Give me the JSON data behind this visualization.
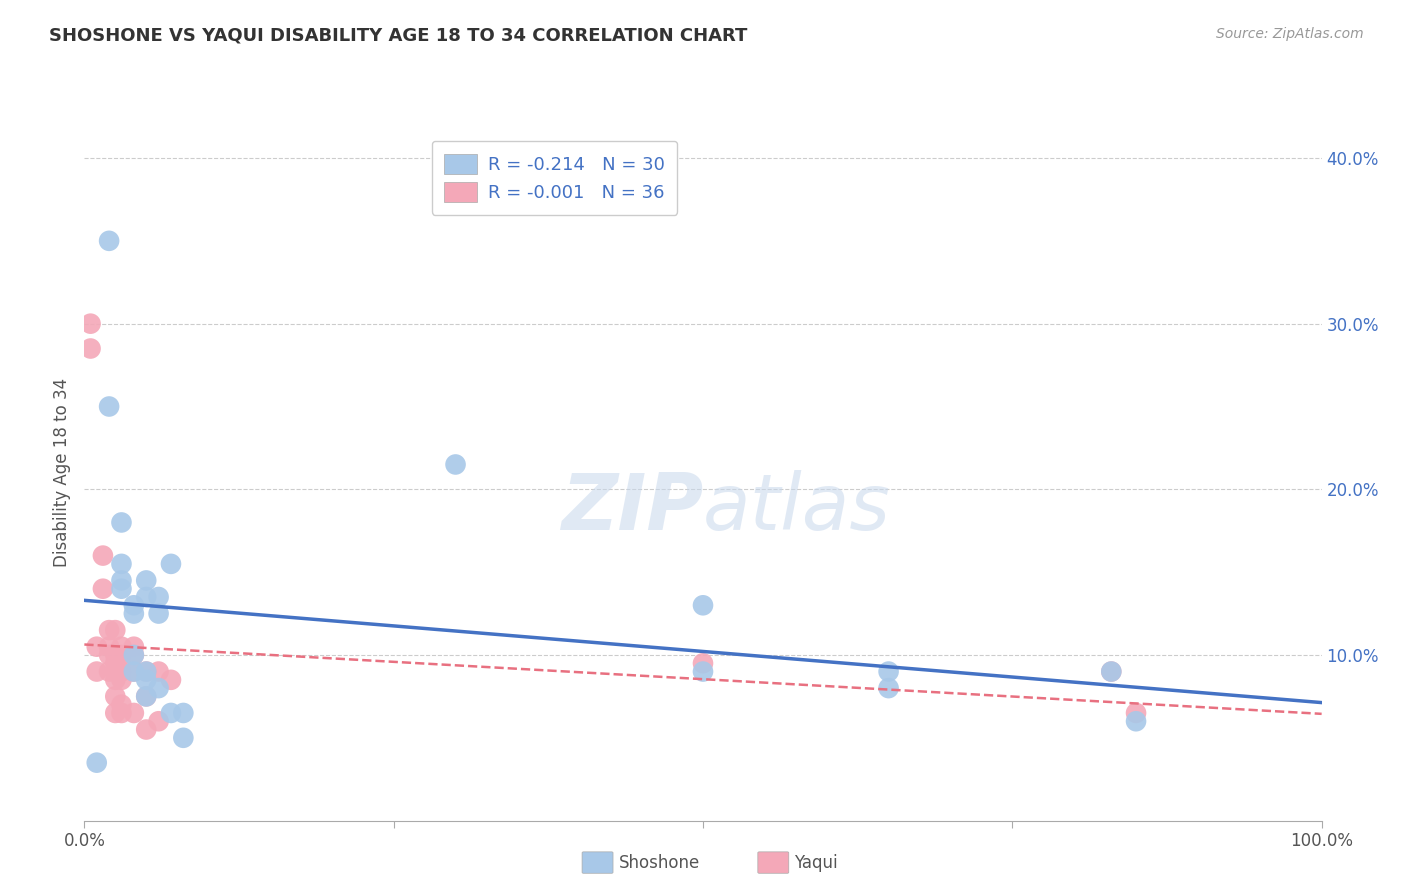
{
  "title": "SHOSHONE VS YAQUI DISABILITY AGE 18 TO 34 CORRELATION CHART",
  "source_text": "Source: ZipAtlas.com",
  "ylabel": "Disability Age 18 to 34",
  "xlim": [
    0,
    1.0
  ],
  "ylim": [
    0,
    0.42
  ],
  "xticks": [
    0.0,
    0.25,
    0.5,
    0.75,
    1.0
  ],
  "xtick_labels": [
    "0.0%",
    "",
    "",
    "",
    "100.0%"
  ],
  "yticks": [
    0.0,
    0.1,
    0.2,
    0.3,
    0.4
  ],
  "ytick_labels_right": [
    "",
    "10.0%",
    "20.0%",
    "30.0%",
    "40.0%"
  ],
  "shoshone_R": -0.214,
  "shoshone_N": 30,
  "yaqui_R": -0.001,
  "yaqui_N": 36,
  "legend_label_shoshone": "Shoshone",
  "legend_label_yaqui": "Yaqui",
  "shoshone_color": "#A8C8E8",
  "yaqui_color": "#F4A8B8",
  "shoshone_line_color": "#4472C4",
  "yaqui_line_color": "#E87080",
  "shoshone_x": [
    0.01,
    0.02,
    0.02,
    0.03,
    0.03,
    0.03,
    0.03,
    0.04,
    0.04,
    0.04,
    0.04,
    0.05,
    0.05,
    0.05,
    0.05,
    0.05,
    0.06,
    0.06,
    0.06,
    0.07,
    0.07,
    0.08,
    0.08,
    0.3,
    0.5,
    0.5,
    0.65,
    0.65,
    0.83,
    0.85
  ],
  "shoshone_y": [
    0.035,
    0.35,
    0.25,
    0.18,
    0.155,
    0.145,
    0.14,
    0.13,
    0.125,
    0.1,
    0.09,
    0.145,
    0.135,
    0.09,
    0.085,
    0.075,
    0.135,
    0.125,
    0.08,
    0.155,
    0.065,
    0.065,
    0.05,
    0.215,
    0.13,
    0.09,
    0.09,
    0.08,
    0.09,
    0.06
  ],
  "yaqui_x": [
    0.005,
    0.005,
    0.01,
    0.01,
    0.015,
    0.015,
    0.02,
    0.02,
    0.02,
    0.02,
    0.025,
    0.025,
    0.025,
    0.025,
    0.025,
    0.025,
    0.025,
    0.03,
    0.03,
    0.03,
    0.03,
    0.03,
    0.03,
    0.04,
    0.04,
    0.04,
    0.04,
    0.05,
    0.05,
    0.05,
    0.06,
    0.06,
    0.07,
    0.5,
    0.83,
    0.85
  ],
  "yaqui_y": [
    0.3,
    0.285,
    0.105,
    0.09,
    0.16,
    0.14,
    0.115,
    0.105,
    0.1,
    0.09,
    0.115,
    0.1,
    0.095,
    0.09,
    0.085,
    0.075,
    0.065,
    0.105,
    0.1,
    0.09,
    0.085,
    0.07,
    0.065,
    0.105,
    0.1,
    0.09,
    0.065,
    0.09,
    0.075,
    0.055,
    0.09,
    0.06,
    0.085,
    0.095,
    0.09,
    0.065
  ]
}
